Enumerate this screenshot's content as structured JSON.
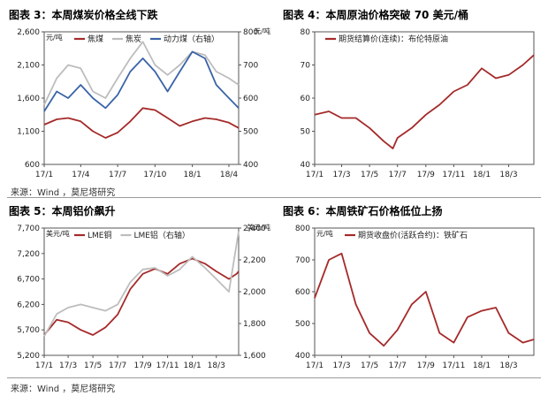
{
  "source_text": "来源：Wind ，莫尼塔研究",
  "chart_data": [
    {
      "type": "line",
      "title": "图表 3：本周煤炭价格全线下跌",
      "left_unit": "元/吨",
      "right_unit": "元/吨",
      "y_left": {
        "min": 600,
        "max": 2600,
        "ticks": [
          600,
          1100,
          1600,
          2100,
          2600
        ],
        "tick_labels": [
          "600",
          "1,100",
          "1,600",
          "2,100",
          "2,600"
        ]
      },
      "y_right": {
        "min": 400,
        "max": 800,
        "ticks": [
          400,
          500,
          600,
          700,
          800
        ],
        "tick_labels": [
          "400",
          "500",
          "600",
          "700",
          "800"
        ]
      },
      "x": [
        "2017-01-01",
        "2017-02-01",
        "2017-03-01",
        "2017-04-01",
        "2017-05-01",
        "2017-06-01",
        "2017-07-01",
        "2017-08-01",
        "2017-09-01",
        "2017-10-01",
        "2017-11-01",
        "2017-12-01",
        "2018-01-01",
        "2018-02-01",
        "2018-03-01",
        "2018-04-01",
        "2018-04-25"
      ],
      "x_ticks": [
        "17/1",
        "17/4",
        "17/7",
        "17/10",
        "18/1",
        "18/4"
      ],
      "series": [
        {
          "name": "焦煤",
          "color": "#a52a2a",
          "axis": "left",
          "values": [
            1200,
            1280,
            1300,
            1250,
            1100,
            1000,
            1080,
            1250,
            1450,
            1420,
            1300,
            1180,
            1250,
            1300,
            1280,
            1230,
            1150
          ]
        },
        {
          "name": "焦炭",
          "color": "#bdbdbd",
          "axis": "left",
          "values": [
            1500,
            1900,
            2100,
            2050,
            1700,
            1600,
            1900,
            2200,
            2450,
            2100,
            1950,
            2100,
            2300,
            2250,
            2000,
            1900,
            1800
          ]
        },
        {
          "name": "动力煤（右轴）",
          "color": "#3a64a8",
          "axis": "right",
          "values": [
            560,
            620,
            600,
            640,
            600,
            570,
            610,
            680,
            720,
            680,
            620,
            680,
            740,
            720,
            640,
            600,
            570
          ]
        }
      ]
    },
    {
      "type": "line",
      "title": "图表 4：本周原油价格突破 70 美元/桶",
      "y_left": {
        "min": 40,
        "max": 80,
        "ticks": [
          40,
          50,
          60,
          70,
          80
        ],
        "tick_labels": [
          "40",
          "50",
          "60",
          "70",
          "80"
        ]
      },
      "x": [
        "2017-01-01",
        "2017-02-01",
        "2017-03-01",
        "2017-04-01",
        "2017-05-01",
        "2017-06-01",
        "2017-06-21",
        "2017-07-01",
        "2017-08-01",
        "2017-09-01",
        "2017-10-01",
        "2017-11-01",
        "2017-12-01",
        "2018-01-01",
        "2018-02-01",
        "2018-03-01",
        "2018-04-01",
        "2018-04-25"
      ],
      "x_ticks": [
        "17/1",
        "17/3",
        "17/5",
        "17/7",
        "17/9",
        "17/11",
        "18/1",
        "18/3"
      ],
      "series": [
        {
          "name": "期货结算价(连续)：布伦特原油",
          "color": "#a52a2a",
          "axis": "left",
          "values": [
            55,
            56,
            54,
            54,
            51,
            47,
            44.8,
            48,
            51,
            55,
            58,
            62,
            64,
            69,
            66,
            67,
            70,
            73
          ]
        }
      ]
    },
    {
      "type": "line",
      "title": "图表 5：本周铝价飙升",
      "left_unit": "美元/吨",
      "right_unit": "美元/吨",
      "y_left": {
        "min": 5200,
        "max": 7700,
        "ticks": [
          5200,
          5700,
          6200,
          6700,
          7200,
          7700
        ],
        "tick_labels": [
          "5,200",
          "5,700",
          "6,200",
          "6,700",
          "7,200",
          "7,700"
        ]
      },
      "y_right": {
        "min": 1600,
        "max": 2400,
        "ticks": [
          1600,
          1800,
          2000,
          2200,
          2400
        ],
        "tick_labels": [
          "1,600",
          "1,800",
          "2,000",
          "2,200",
          "2,400"
        ]
      },
      "x": [
        "2017-01-01",
        "2017-02-01",
        "2017-03-01",
        "2017-04-01",
        "2017-05-01",
        "2017-06-01",
        "2017-07-01",
        "2017-08-01",
        "2017-09-01",
        "2017-10-01",
        "2017-11-01",
        "2017-12-01",
        "2018-01-01",
        "2018-02-01",
        "2018-03-01",
        "2018-04-01",
        "2018-04-20",
        "2018-04-25"
      ],
      "x_ticks": [
        "17/1",
        "17/3",
        "17/5",
        "17/7",
        "17/9",
        "17/11",
        "18/1",
        "18/3"
      ],
      "series": [
        {
          "name": "LME铜",
          "color": "#a52a2a",
          "axis": "left",
          "values": [
            5600,
            5900,
            5850,
            5700,
            5600,
            5750,
            6000,
            6500,
            6800,
            6900,
            6800,
            7000,
            7100,
            7000,
            6850,
            6700,
            6800,
            6850
          ]
        },
        {
          "name": "LME铝（右轴）",
          "color": "#bdbdbd",
          "axis": "right",
          "values": [
            1720,
            1860,
            1900,
            1920,
            1900,
            1880,
            1920,
            2060,
            2140,
            2150,
            2100,
            2140,
            2220,
            2150,
            2080,
            2000,
            2300,
            2380
          ]
        }
      ]
    },
    {
      "type": "line",
      "title": "图表 6：本周铁矿石价格低位上扬",
      "left_unit": "元/吨",
      "y_left": {
        "min": 400,
        "max": 800,
        "ticks": [
          400,
          500,
          600,
          700,
          800
        ],
        "tick_labels": [
          "400",
          "500",
          "600",
          "700",
          "800"
        ]
      },
      "x": [
        "2017-01-01",
        "2017-02-01",
        "2017-03-01",
        "2017-04-01",
        "2017-05-01",
        "2017-06-01",
        "2017-07-01",
        "2017-08-01",
        "2017-09-01",
        "2017-10-01",
        "2017-11-01",
        "2017-12-01",
        "2018-01-01",
        "2018-02-01",
        "2018-03-01",
        "2018-04-01",
        "2018-04-25"
      ],
      "x_ticks": [
        "17/1",
        "17/3",
        "17/5",
        "17/7",
        "17/9",
        "17/11",
        "18/1",
        "18/3"
      ],
      "series": [
        {
          "name": "期货收盘价(活跃合约)：铁矿石",
          "color": "#a52a2a",
          "axis": "left",
          "values": [
            580,
            700,
            720,
            560,
            470,
            430,
            480,
            560,
            600,
            470,
            440,
            520,
            540,
            550,
            470,
            440,
            450
          ]
        }
      ]
    }
  ]
}
